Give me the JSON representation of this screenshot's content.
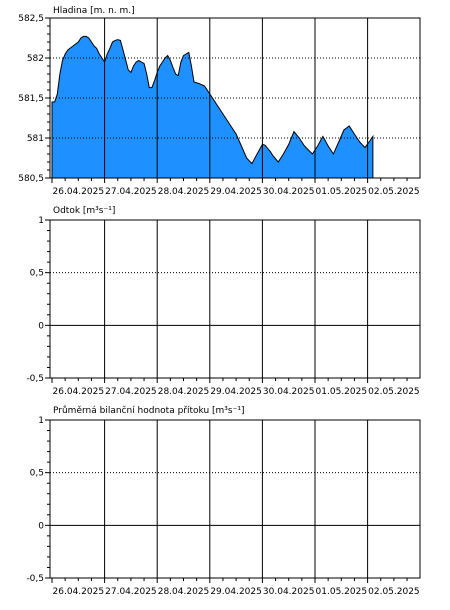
{
  "chart_data": [
    {
      "type": "area",
      "ylabel": "Hladina [m. n. m.]",
      "x_ticks": [
        "26.04.2025",
        "27.04.2025",
        "28.04.2025",
        "29.04.2025",
        "30.04.2025",
        "01.05.2025",
        "02.05.2025"
      ],
      "y_ticks": [
        "582,5",
        "582",
        "581,5",
        "581",
        "580,5"
      ],
      "y_tick_values": [
        582.5,
        582,
        581.5,
        581,
        580.5
      ],
      "ylim": [
        580.5,
        582.5
      ],
      "grid": true,
      "fill_color": "#1e90ff",
      "x": [
        0,
        0.05,
        0.1,
        0.15,
        0.2,
        0.25,
        0.3,
        0.4,
        0.5,
        0.55,
        0.6,
        0.65,
        0.7,
        0.75,
        0.8,
        0.85,
        0.9,
        1.0,
        1.05,
        1.1,
        1.15,
        1.2,
        1.25,
        1.3,
        1.35,
        1.4,
        1.45,
        1.5,
        1.55,
        1.6,
        1.65,
        1.7,
        1.75,
        1.8,
        1.85,
        1.9,
        1.95,
        2.0,
        2.05,
        2.1,
        2.15,
        2.2,
        2.25,
        2.3,
        2.35,
        2.4,
        2.45,
        2.5,
        2.55,
        2.6,
        2.65,
        2.7,
        2.8,
        2.9,
        3.0,
        3.1,
        3.2,
        3.3,
        3.4,
        3.5,
        3.6,
        3.7,
        3.8,
        3.9,
        4.0,
        4.05,
        4.1,
        4.15,
        4.2,
        4.3,
        4.4,
        4.5,
        4.55,
        4.6,
        4.7,
        4.8,
        4.95,
        5.05,
        5.15,
        5.25,
        5.35,
        5.45,
        5.55,
        5.65,
        5.75,
        5.85,
        5.95,
        6.05,
        6.1
      ],
      "y": [
        581.45,
        581.45,
        581.55,
        581.8,
        581.97,
        582.05,
        582.1,
        582.15,
        582.2,
        582.25,
        582.27,
        582.27,
        582.25,
        582.2,
        582.15,
        582.12,
        582.05,
        581.95,
        582.05,
        582.12,
        582.2,
        582.22,
        582.23,
        582.22,
        582.1,
        581.98,
        581.85,
        581.82,
        581.9,
        581.95,
        581.97,
        581.95,
        581.93,
        581.8,
        581.63,
        581.63,
        581.72,
        581.82,
        581.9,
        581.95,
        582.0,
        582.03,
        581.97,
        581.88,
        581.8,
        581.78,
        581.95,
        582.03,
        582.05,
        582.07,
        581.9,
        581.7,
        581.68,
        581.65,
        581.55,
        581.45,
        581.35,
        581.25,
        581.15,
        581.05,
        580.9,
        580.75,
        580.68,
        580.8,
        580.92,
        580.91,
        580.87,
        580.83,
        580.78,
        580.7,
        580.8,
        580.92,
        581.0,
        581.08,
        581.0,
        580.9,
        580.8,
        580.9,
        581.02,
        580.9,
        580.8,
        580.95,
        581.1,
        581.15,
        581.05,
        580.95,
        580.88,
        580.97,
        581.02
      ]
    },
    {
      "type": "line",
      "ylabel": "Odtok [m³s⁻¹]",
      "x_ticks": [
        "26.04.2025",
        "27.04.2025",
        "28.04.2025",
        "29.04.2025",
        "30.04.2025",
        "01.05.2025",
        "02.05.2025"
      ],
      "y_ticks": [
        "1",
        "0,5",
        "0",
        "-0,5"
      ],
      "y_tick_values": [
        1,
        0.5,
        0,
        -0.5
      ],
      "ylim": [
        -0.5,
        1
      ],
      "grid": true,
      "series": []
    },
    {
      "type": "line",
      "ylabel": "Průměrná bilanční hodnota přítoku   [m³s⁻¹]",
      "x_ticks": [
        "26.04.2025",
        "27.04.2025",
        "28.04.2025",
        "29.04.2025",
        "30.04.2025",
        "01.05.2025",
        "02.05.2025"
      ],
      "y_ticks": [
        "1",
        "0,5",
        "0",
        "-0,5"
      ],
      "y_tick_values": [
        1,
        0.5,
        0,
        -0.5
      ],
      "ylim": [
        -0.5,
        1
      ],
      "grid": true,
      "series": []
    }
  ]
}
